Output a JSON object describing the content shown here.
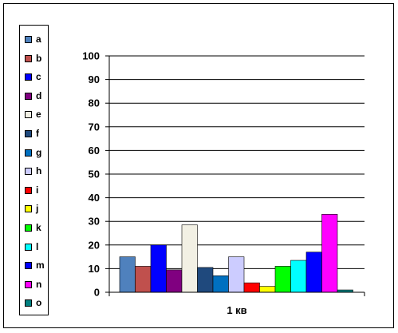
{
  "chart_data": {
    "type": "bar",
    "title": "",
    "xlabel": "",
    "ylabel": "",
    "categories": [
      "1 кв"
    ],
    "ylim": [
      0,
      100
    ],
    "yticks": [
      0,
      10,
      20,
      30,
      40,
      50,
      60,
      70,
      80,
      90,
      100
    ],
    "grid": true,
    "legend_position": "left",
    "series": [
      {
        "name": "a",
        "values": [
          15
        ],
        "color": "#4F81BD"
      },
      {
        "name": "b",
        "values": [
          11
        ],
        "color": "#C0504D"
      },
      {
        "name": "c",
        "values": [
          20
        ],
        "color": "#0000FF"
      },
      {
        "name": "d",
        "values": [
          9.5
        ],
        "color": "#800080"
      },
      {
        "name": "e",
        "values": [
          28.5
        ],
        "color": "#F2F0E4"
      },
      {
        "name": "f",
        "values": [
          10.5
        ],
        "color": "#1F497D"
      },
      {
        "name": "g",
        "values": [
          7
        ],
        "color": "#0070C0"
      },
      {
        "name": "h",
        "values": [
          15
        ],
        "color": "#CCCCFF"
      },
      {
        "name": "i",
        "values": [
          4
        ],
        "color": "#FF0000"
      },
      {
        "name": "j",
        "values": [
          2.5
        ],
        "color": "#FFFF00"
      },
      {
        "name": "k",
        "values": [
          11
        ],
        "color": "#00FF00"
      },
      {
        "name": "l",
        "values": [
          13.5
        ],
        "color": "#00FFFF"
      },
      {
        "name": "m",
        "values": [
          17
        ],
        "color": "#0000FF"
      },
      {
        "name": "n",
        "values": [
          33
        ],
        "color": "#FF00FF"
      },
      {
        "name": "o",
        "values": [
          1
        ],
        "color": "#008080"
      }
    ]
  }
}
